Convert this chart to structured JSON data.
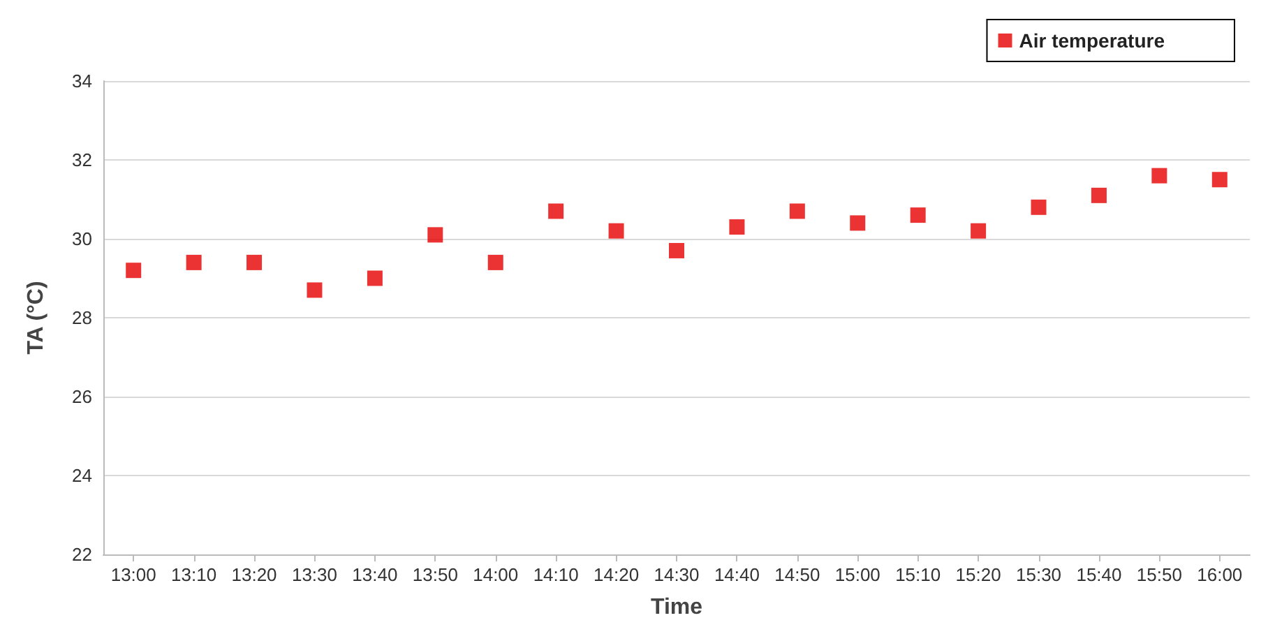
{
  "chart_data": {
    "type": "scatter",
    "xlabel": "Time",
    "ylabel": "TA (°C)",
    "categories": [
      "13:00",
      "13:10",
      "13:20",
      "13:30",
      "13:40",
      "13:50",
      "14:00",
      "14:10",
      "14:20",
      "14:30",
      "14:40",
      "14:50",
      "15:00",
      "15:10",
      "15:20",
      "15:30",
      "15:40",
      "15:50",
      "16:00"
    ],
    "series": [
      {
        "name": "Air temperature",
        "color": "#e60000",
        "values": [
          29.2,
          29.4,
          29.4,
          28.7,
          29.0,
          30.1,
          29.4,
          30.7,
          30.2,
          29.7,
          30.3,
          30.7,
          30.4,
          30.6,
          30.2,
          30.8,
          31.1,
          31.6,
          31.5
        ]
      }
    ],
    "ylim": [
      22,
      34
    ],
    "yticks": [
      22,
      24,
      26,
      28,
      30,
      32,
      34
    ],
    "grid": "y",
    "legend": "top right",
    "marker": "square"
  }
}
